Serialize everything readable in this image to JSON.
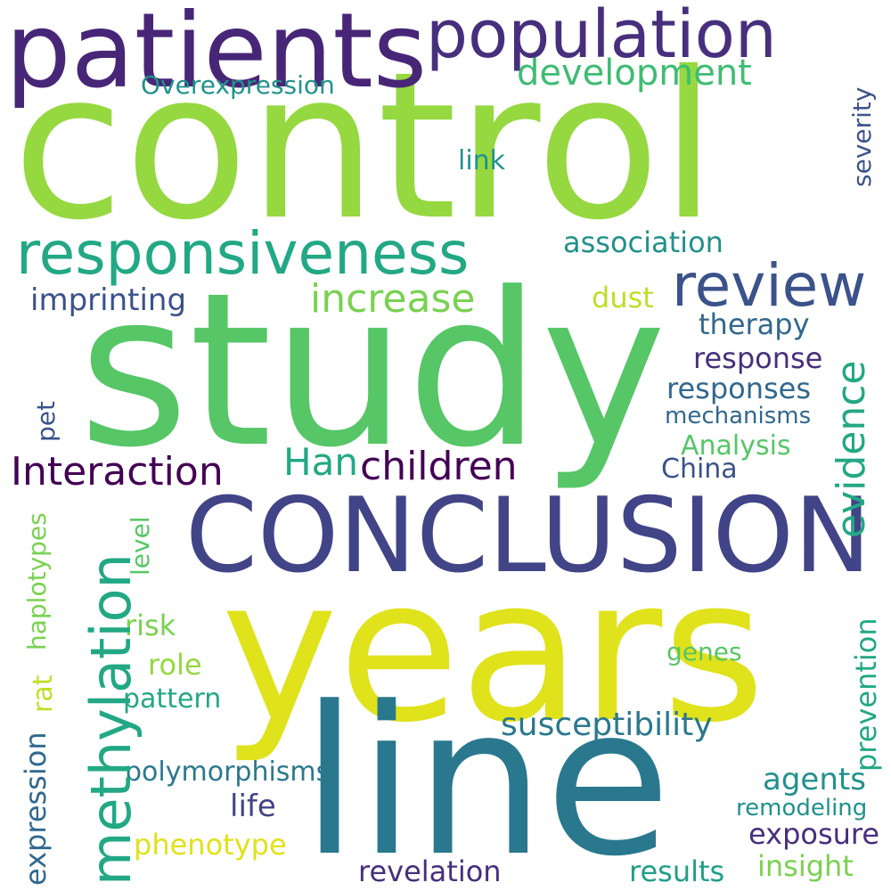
{
  "colors": {
    "background": "#ffffff",
    "c_lime": "#95d840",
    "c_green": "#56c667",
    "c_yellow": "#e0e21b",
    "c_indigo": "#414487",
    "c_purple": "#482677",
    "c_darkpurple": "#440154",
    "c_blue": "#2a788e",
    "c_teal": "#1f9e89",
    "c_teal2": "#22a884",
    "c_cyan": "#21918c",
    "c_navy": "#3b528b",
    "c_midblue": "#31688e",
    "c_violet": "#472f7d",
    "c_lightgreen": "#7ad151",
    "c_yellowgreen": "#bddf26",
    "c_mint": "#3fbc73"
  },
  "words": {
    "control": "control",
    "study": "study",
    "years": "years",
    "line": "line",
    "conclusion": "CONCLUSION",
    "patients": "patients",
    "population": "population",
    "responsiveness": "responsiveness",
    "review": "review",
    "methylation": "methylation",
    "development": "development",
    "increase": "increase",
    "interaction": "Interaction",
    "children": "children",
    "han": "Han",
    "evidence": "evidence",
    "overexpression": "Overexpression",
    "susceptibility": "susceptibility",
    "association": "association",
    "imprinting": "imprinting",
    "prevention": "prevention",
    "link": "link",
    "dust": "dust",
    "therapy": "therapy",
    "response": "response",
    "responses": "responses",
    "mechanisms": "mechanisms",
    "analysis": "Analysis",
    "china": "China",
    "severity": "severity",
    "pet": "pet",
    "haplotypes": "haplotypes",
    "level": "level",
    "risk": "risk",
    "role": "role",
    "pattern": "pattern",
    "rat": "rat",
    "expression": "expression",
    "polymorphisms": "polymorphisms",
    "agents": "agents",
    "life": "life",
    "remodeling": "remodeling",
    "phenotype": "phenotype",
    "exposure": "exposure",
    "revelation": "revelation",
    "results": "results",
    "insight": "insight",
    "genes": "genes"
  }
}
